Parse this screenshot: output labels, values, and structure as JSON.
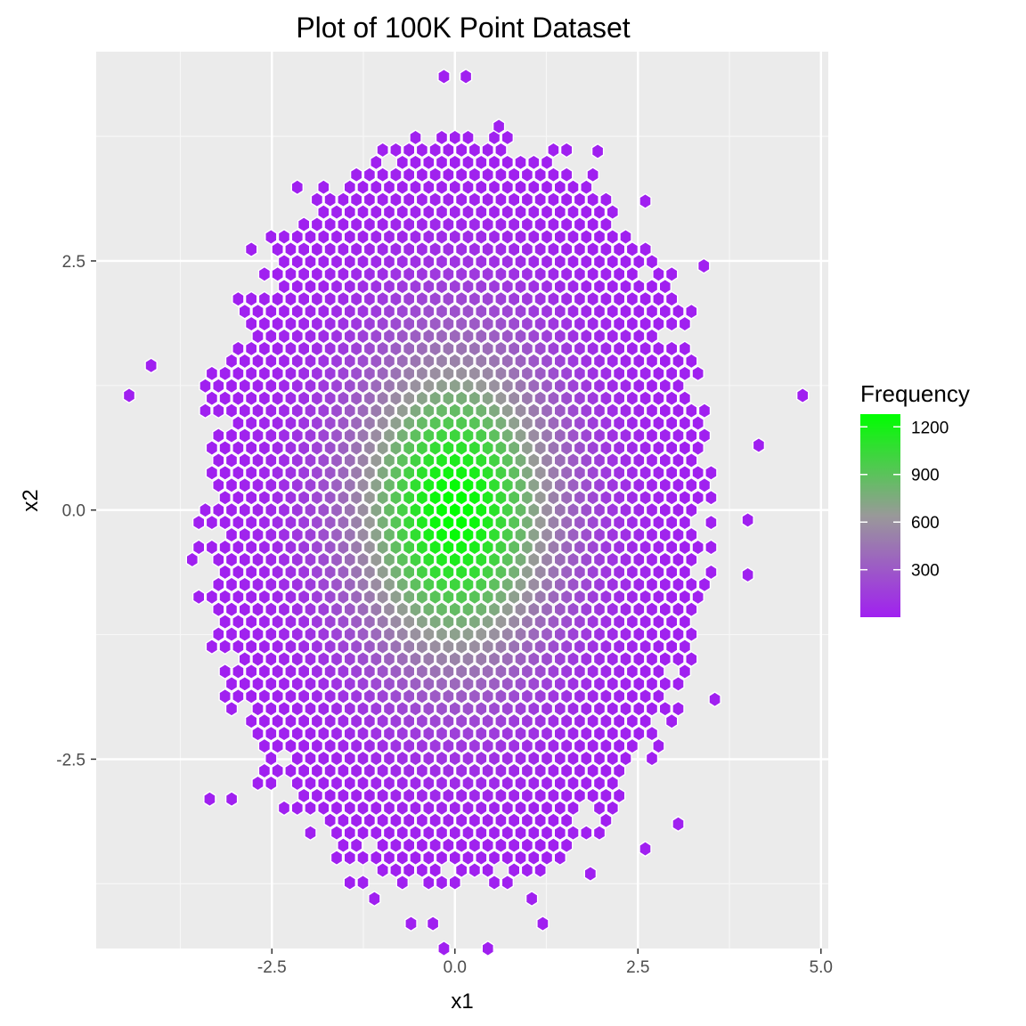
{
  "chart_data": {
    "type": "hexbin",
    "title": "Plot of 100K Point Dataset",
    "xlabel": "x1",
    "ylabel": "x2",
    "xlim": [
      -4.9,
      5.1
    ],
    "ylim": [
      -4.4,
      4.6
    ],
    "x_ticks": [
      -2.5,
      0.0,
      2.5,
      5.0
    ],
    "x_tick_labels": [
      "-2.5",
      "0.0",
      "2.5",
      "5.0"
    ],
    "y_ticks": [
      -2.5,
      0.0,
      2.5
    ],
    "y_tick_labels": [
      "-2.5",
      "0.0",
      "2.5"
    ],
    "grid": true,
    "background": "#ebebeb",
    "hex_radius": 0.14,
    "legend": {
      "title": "Frequency",
      "position": "right",
      "ticks": [
        300,
        600,
        900,
        1200
      ],
      "tick_labels": [
        "300",
        "600",
        "900",
        "1200"
      ],
      "min": 1,
      "max": 1280,
      "low_color": "#a020f0",
      "mid_color": "#999999",
      "high_color": "#00ff00"
    },
    "distribution": {
      "center": [
        0.0,
        0.0
      ],
      "sd": [
        1.0,
        1.0
      ],
      "peak_count": 1280,
      "extent": 3.45
    },
    "outlier_bins": [
      {
        "x": -4.45,
        "y": 1.15
      },
      {
        "x": -4.15,
        "y": 1.45
      },
      {
        "x": 4.75,
        "y": 1.15
      },
      {
        "x": 4.15,
        "y": 0.65
      },
      {
        "x": 4.0,
        "y": -0.1
      },
      {
        "x": 4.0,
        "y": -0.65
      },
      {
        "x": 3.55,
        "y": -1.9
      },
      {
        "x": 3.4,
        "y": 2.45
      },
      {
        "x": -3.35,
        "y": -2.9
      },
      {
        "x": -3.05,
        "y": -2.9
      },
      {
        "x": 3.05,
        "y": -3.15
      },
      {
        "x": 2.6,
        "y": -3.4
      },
      {
        "x": 1.85,
        "y": -3.65
      },
      {
        "x": -1.1,
        "y": -3.9
      },
      {
        "x": -0.6,
        "y": -4.15
      },
      {
        "x": -0.3,
        "y": -4.15
      },
      {
        "x": -0.15,
        "y": -4.4
      },
      {
        "x": 0.45,
        "y": -4.4
      },
      {
        "x": 1.2,
        "y": -4.15
      },
      {
        "x": 1.05,
        "y": -3.9
      },
      {
        "x": -0.15,
        "y": 4.35
      },
      {
        "x": 0.15,
        "y": 4.35
      },
      {
        "x": 0.6,
        "y": 3.85
      },
      {
        "x": 1.95,
        "y": 3.6
      },
      {
        "x": 2.6,
        "y": 3.1
      }
    ]
  }
}
